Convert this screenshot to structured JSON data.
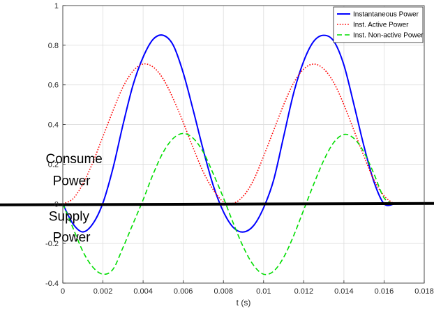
{
  "chart_data": {
    "type": "line",
    "title": "",
    "xlabel": "t (s)",
    "ylabel": "",
    "xlim": [
      0,
      0.018
    ],
    "ylim": [
      -0.4,
      1
    ],
    "xticks": [
      0,
      0.002,
      0.004,
      0.006,
      0.008,
      0.01,
      0.012,
      0.014,
      0.016,
      0.018
    ],
    "xtick_labels": [
      "0",
      "0.002",
      "0.004",
      "0.006",
      "0.008",
      "0.01",
      "0.012",
      "0.014",
      "0.016",
      "0.018"
    ],
    "yticks": [
      -0.4,
      -0.2,
      0,
      0.2,
      0.4,
      0.6,
      0.8,
      1
    ],
    "ytick_labels": [
      "-0.4",
      "-0.2",
      "0",
      "0.2",
      "0.4",
      "0.6",
      "0.8",
      "1"
    ],
    "grid": true,
    "legend_position": "top-right",
    "series": [
      {
        "name": "Instantaneous Power",
        "color": "#0000ff",
        "dash": "solid",
        "x": [
          0,
          0.0005,
          0.001,
          0.0015,
          0.002,
          0.0025,
          0.003,
          0.0035,
          0.004,
          0.0045,
          0.005,
          0.0055,
          0.006,
          0.0065,
          0.007,
          0.0075,
          0.008,
          0.0085,
          0.009,
          0.0095,
          0.01,
          0.0105,
          0.011,
          0.0115,
          0.012,
          0.0125,
          0.013,
          0.0135,
          0.014,
          0.0145,
          0.015,
          0.0155,
          0.016,
          0.0165
        ],
        "y": [
          0,
          -0.1,
          -0.142,
          -0.1,
          0.005,
          0.18,
          0.4,
          0.6,
          0.74,
          0.83,
          0.85,
          0.8,
          0.66,
          0.47,
          0.27,
          0.09,
          -0.04,
          -0.12,
          -0.142,
          -0.11,
          -0.02,
          0.12,
          0.34,
          0.56,
          0.72,
          0.82,
          0.85,
          0.82,
          0.7,
          0.5,
          0.29,
          0.11,
          0.0,
          -0.001
        ]
      },
      {
        "name": "Inst. Active Power",
        "color": "#ff0000",
        "dash": "dotted",
        "x": [
          0,
          0.0005,
          0.001,
          0.0015,
          0.002,
          0.0025,
          0.003,
          0.0035,
          0.004,
          0.0045,
          0.005,
          0.0055,
          0.006,
          0.0065,
          0.007,
          0.0075,
          0.008,
          0.0085,
          0.009,
          0.0095,
          0.01,
          0.0105,
          0.011,
          0.0115,
          0.012,
          0.0125,
          0.013,
          0.0135,
          0.014,
          0.0145,
          0.015,
          0.0155,
          0.016,
          0.0165
        ],
        "y": [
          0,
          0.025,
          0.1,
          0.21,
          0.34,
          0.47,
          0.59,
          0.67,
          0.705,
          0.69,
          0.63,
          0.53,
          0.41,
          0.28,
          0.16,
          0.07,
          0.01,
          0.003,
          0.04,
          0.12,
          0.24,
          0.37,
          0.5,
          0.61,
          0.68,
          0.705,
          0.68,
          0.61,
          0.5,
          0.37,
          0.24,
          0.12,
          0.04,
          0.0
        ]
      },
      {
        "name": "Inst. Non-active Power",
        "color": "#00dd00",
        "dash": "dashed",
        "x": [
          0,
          0.0005,
          0.001,
          0.0015,
          0.002,
          0.0025,
          0.003,
          0.0035,
          0.004,
          0.0045,
          0.005,
          0.0055,
          0.006,
          0.0065,
          0.007,
          0.0075,
          0.008,
          0.0085,
          0.009,
          0.0095,
          0.01,
          0.0105,
          0.011,
          0.0115,
          0.012,
          0.0125,
          0.013,
          0.0135,
          0.014,
          0.0145,
          0.015,
          0.0155,
          0.016,
          0.0165
        ],
        "y": [
          0,
          -0.12,
          -0.24,
          -0.32,
          -0.355,
          -0.33,
          -0.22,
          -0.1,
          0.02,
          0.15,
          0.26,
          0.33,
          0.355,
          0.33,
          0.26,
          0.15,
          0.03,
          -0.1,
          -0.22,
          -0.31,
          -0.355,
          -0.34,
          -0.27,
          -0.16,
          -0.03,
          0.1,
          0.22,
          0.31,
          0.35,
          0.33,
          0.26,
          0.15,
          0.03,
          0.0
        ]
      }
    ],
    "annotations": [
      {
        "text": "Consume",
        "x": -0.00085,
        "y": 0.205
      },
      {
        "text": "Power",
        "x": -0.0005,
        "y": 0.095
      },
      {
        "text": "Supply",
        "x": -0.0007,
        "y": -0.085
      },
      {
        "text": "Power",
        "x": -0.0005,
        "y": -0.19
      }
    ],
    "zero_line_color": "#000000"
  }
}
